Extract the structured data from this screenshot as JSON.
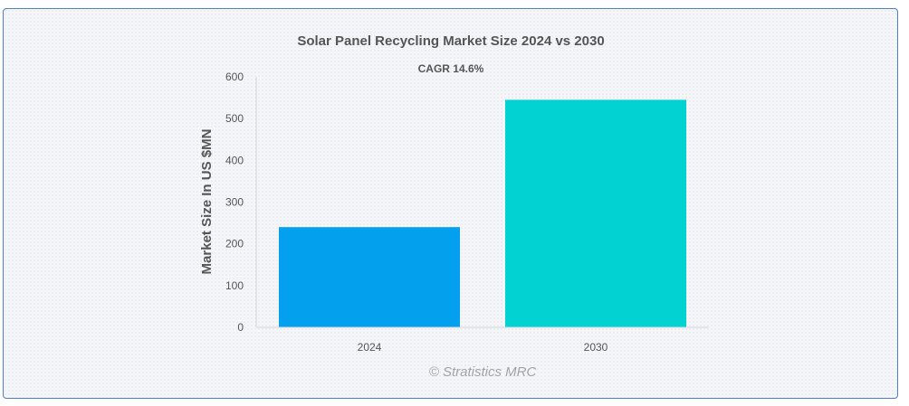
{
  "chart_data": {
    "type": "bar",
    "title": "Solar Panel Recycling Market Size 2024 vs 2030",
    "subtitle": "CAGR 14.6%",
    "xlabel": "",
    "ylabel": "Market Size In US $MN",
    "categories": [
      "2024",
      "2030"
    ],
    "values": [
      240,
      545
    ],
    "colors": [
      "#03a0ee",
      "#02d2d2"
    ],
    "ylim": [
      0,
      600
    ],
    "yticks": [
      0,
      100,
      200,
      300,
      400,
      500,
      600
    ],
    "grid": false,
    "legend": "none"
  },
  "watermark": "© Stratistics MRC"
}
